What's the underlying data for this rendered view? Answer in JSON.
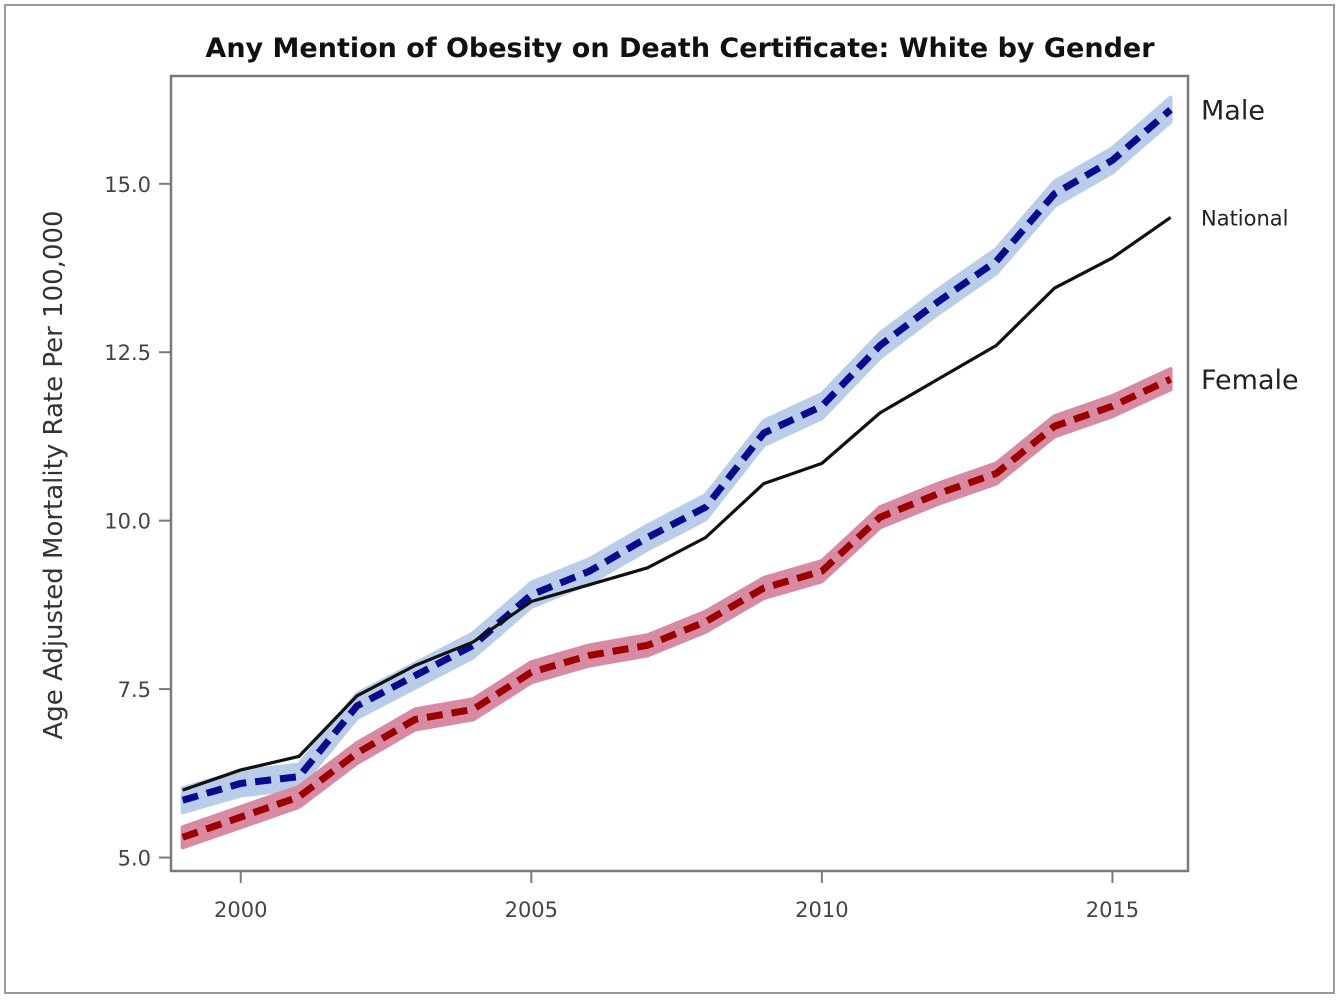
{
  "chart_data": {
    "type": "line",
    "title": "Any Mention of Obesity on Death Certificate: White by Gender",
    "xlabel": "",
    "ylabel": "Age Adjusted Mortality Rate Per 100,000",
    "xlim": [
      1998.8,
      2016.3
    ],
    "ylim": [
      4.8,
      16.6
    ],
    "x_ticks": [
      2000,
      2005,
      2010,
      2015
    ],
    "x_tick_labels": [
      "2000",
      "2005",
      "2010",
      "2015"
    ],
    "y_ticks": [
      5.0,
      7.5,
      10.0,
      12.5,
      15.0
    ],
    "y_tick_labels": [
      "5.0",
      "7.5",
      "10.0",
      "12.5",
      "15.0"
    ],
    "grid": false,
    "legend": "none",
    "x": [
      1999,
      2000,
      2001,
      2002,
      2003,
      2004,
      2005,
      2006,
      2007,
      2008,
      2009,
      2010,
      2011,
      2012,
      2013,
      2014,
      2015,
      2016
    ],
    "series": [
      {
        "name": "Male",
        "style": "dashed",
        "color": "#0a0a8c",
        "band_color": "#b9cdea",
        "band_halfwidth": 0.18,
        "values": [
          5.85,
          6.1,
          6.2,
          7.25,
          7.7,
          8.15,
          8.9,
          9.25,
          9.75,
          10.2,
          11.3,
          11.7,
          12.6,
          13.25,
          13.85,
          14.85,
          15.35,
          16.1
        ]
      },
      {
        "name": "National",
        "style": "solid",
        "color": "#111111",
        "values": [
          6.0,
          6.3,
          6.5,
          7.4,
          7.85,
          8.2,
          8.8,
          9.05,
          9.3,
          9.75,
          10.55,
          10.85,
          11.6,
          12.1,
          12.6,
          13.45,
          13.9,
          14.5
        ]
      },
      {
        "name": "Female",
        "style": "dashed",
        "color": "#9b0000",
        "band_color": "#d88aa2",
        "band_halfwidth": 0.15,
        "values": [
          5.3,
          5.6,
          5.9,
          6.55,
          7.05,
          7.2,
          7.75,
          8.0,
          8.15,
          8.5,
          9.0,
          9.25,
          10.05,
          10.4,
          10.7,
          11.4,
          11.7,
          12.1
        ]
      }
    ]
  }
}
